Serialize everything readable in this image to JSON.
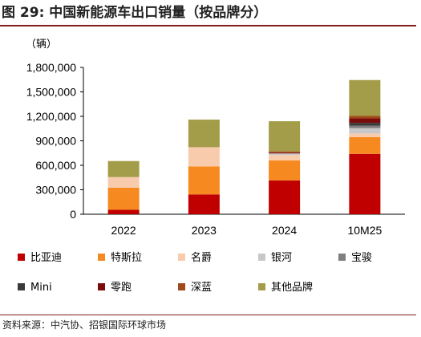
{
  "figure": {
    "title": "图 29: 中国新能源车出口销量（按品牌分）",
    "source": "资料来源：中汽协、招银国际环球市场"
  },
  "colors": {
    "accent": "#7f1c1c"
  },
  "chart_data": {
    "type": "bar",
    "stacked": true,
    "unit": "（辆）",
    "categories": [
      "2022",
      "2023",
      "2024",
      "10M25"
    ],
    "ylim": [
      0,
      1800000
    ],
    "yticks": [
      0,
      300000,
      600000,
      900000,
      1200000,
      1500000,
      1800000
    ],
    "ytick_labels": [
      "0",
      "300,000",
      "600,000",
      "900,000",
      "1,200,000",
      "1,500,000",
      "1,800,000"
    ],
    "grid": false,
    "legend_position": "bottom",
    "series": [
      {
        "name": "比亚迪",
        "color": "#c00000",
        "values": [
          55000,
          243000,
          415000,
          740000
        ]
      },
      {
        "name": "特斯拉",
        "color": "#f6891f",
        "values": [
          271000,
          344000,
          245000,
          205000
        ]
      },
      {
        "name": "名爵",
        "color": "#f9cbad",
        "values": [
          130000,
          235000,
          65000,
          45000
        ]
      },
      {
        "name": "银河",
        "color": "#c8c8c8",
        "values": [
          0,
          0,
          20000,
          65000
        ]
      },
      {
        "name": "宝骏",
        "color": "#7f7f7f",
        "values": [
          0,
          0,
          0,
          30000
        ]
      },
      {
        "name": "Mini",
        "color": "#3a3a3a",
        "values": [
          0,
          0,
          0,
          35000
        ]
      },
      {
        "name": "零跑",
        "color": "#7a0c0c",
        "values": [
          0,
          0,
          10000,
          55000
        ]
      },
      {
        "name": "深蓝",
        "color": "#a04a1a",
        "values": [
          0,
          0,
          15000,
          30000
        ]
      },
      {
        "name": "其他品牌",
        "color": "#a39c48",
        "values": [
          196000,
          338000,
          370000,
          440000
        ]
      }
    ]
  }
}
